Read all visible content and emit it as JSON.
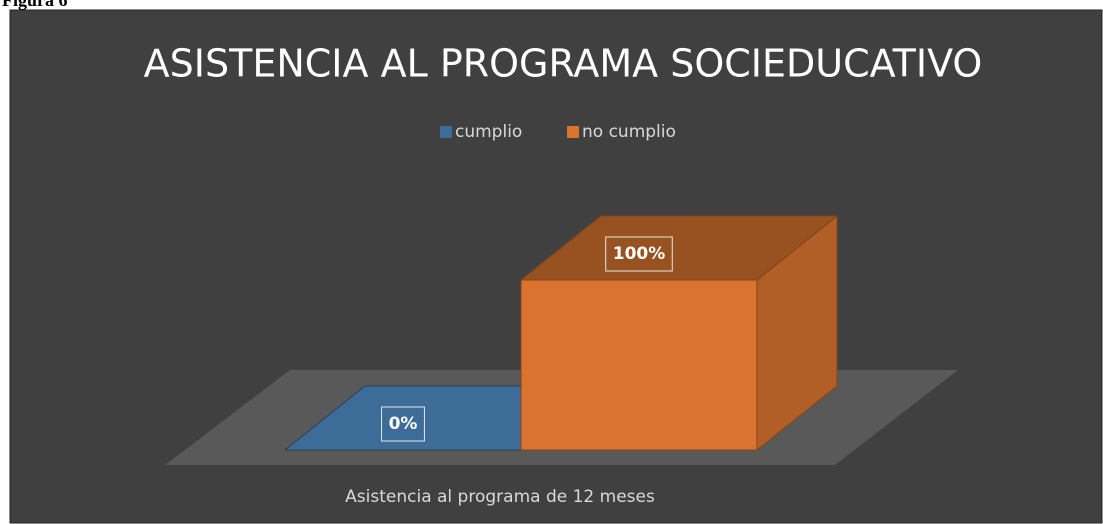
{
  "caption": "Figura 6",
  "chart_data": {
    "type": "bar3d",
    "title": "ASISTENCIA AL PROGRAMA SOCIEDUCATIVO",
    "categories": [
      "Asistencia al programa de 12 meses"
    ],
    "series": [
      {
        "name": "cumplio",
        "color": "#3d6c98",
        "values": [
          0
        ],
        "value_labels": [
          "0%"
        ]
      },
      {
        "name": "no cumplio",
        "color": "#d9732f",
        "values": [
          100
        ],
        "value_labels": [
          "100%"
        ]
      }
    ],
    "legend": "top"
  }
}
